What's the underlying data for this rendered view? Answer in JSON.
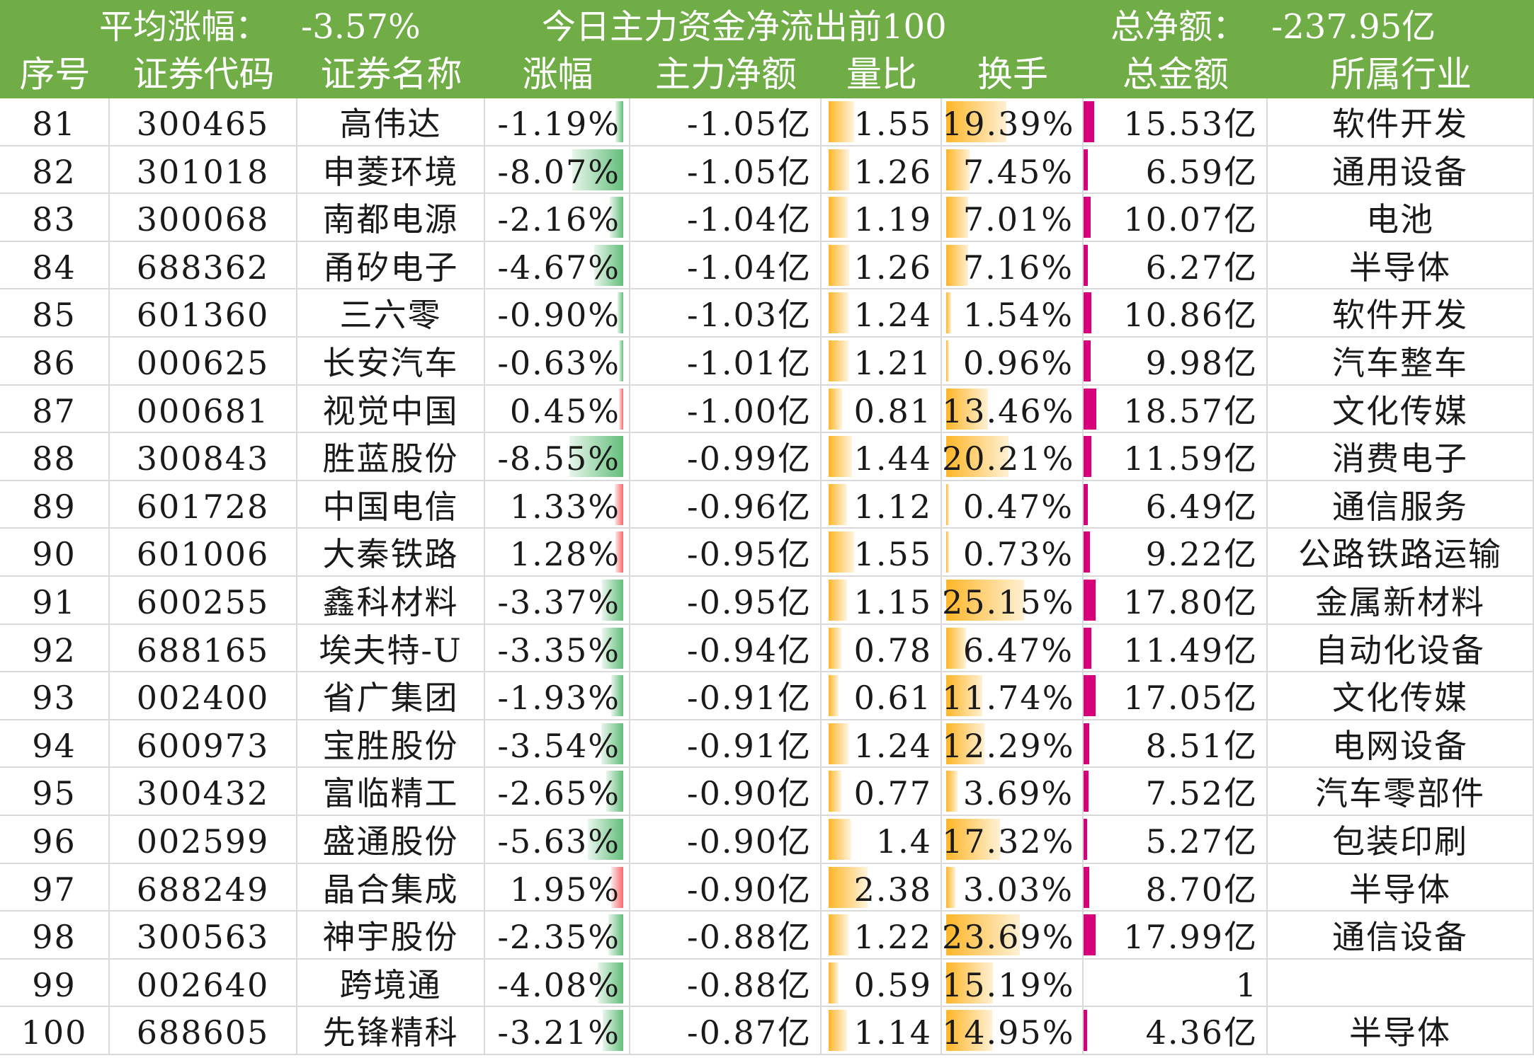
{
  "header": {
    "avg_label": "平均涨幅：",
    "avg_value": "-3.57%",
    "title": "今日主力资金净流出前100",
    "total_label": "总净额：",
    "total_value": "-237.95亿",
    "columns": [
      "序号",
      "证券代码",
      "证券名称",
      "涨幅",
      "主力净额",
      "量比",
      "换手",
      "总金额",
      "所属行业"
    ]
  },
  "colors": {
    "header_bg": "#70ad47",
    "bar_down": "#63be7b",
    "bar_up": "#f8696b",
    "bar_ratio": "#ffb628",
    "bar_amount": "#d6007b"
  },
  "rows": [
    {
      "no": "81",
      "code": "300465",
      "name": "高伟达",
      "chg": "-1.19%",
      "net": "-1.05亿",
      "ratio": "1.55",
      "turnover": "19.39%",
      "amount": "15.53亿",
      "industry": "软件开发"
    },
    {
      "no": "82",
      "code": "301018",
      "name": "申菱环境",
      "chg": "-8.07%",
      "net": "-1.05亿",
      "ratio": "1.26",
      "turnover": "7.45%",
      "amount": "6.59亿",
      "industry": "通用设备"
    },
    {
      "no": "83",
      "code": "300068",
      "name": "南都电源",
      "chg": "-2.16%",
      "net": "-1.04亿",
      "ratio": "1.19",
      "turnover": "7.01%",
      "amount": "10.07亿",
      "industry": "电池"
    },
    {
      "no": "84",
      "code": "688362",
      "name": "甬矽电子",
      "chg": "-4.67%",
      "net": "-1.04亿",
      "ratio": "1.26",
      "turnover": "7.16%",
      "amount": "6.27亿",
      "industry": "半导体"
    },
    {
      "no": "85",
      "code": "601360",
      "name": "三六零",
      "chg": "-0.90%",
      "net": "-1.03亿",
      "ratio": "1.24",
      "turnover": "1.54%",
      "amount": "10.86亿",
      "industry": "软件开发"
    },
    {
      "no": "86",
      "code": "000625",
      "name": "长安汽车",
      "chg": "-0.63%",
      "net": "-1.01亿",
      "ratio": "1.21",
      "turnover": "0.96%",
      "amount": "9.98亿",
      "industry": "汽车整车"
    },
    {
      "no": "87",
      "code": "000681",
      "name": "视觉中国",
      "chg": "0.45%",
      "net": "-1.00亿",
      "ratio": "0.81",
      "turnover": "13.46%",
      "amount": "18.57亿",
      "industry": "文化传媒"
    },
    {
      "no": "88",
      "code": "300843",
      "name": "胜蓝股份",
      "chg": "-8.55%",
      "net": "-0.99亿",
      "ratio": "1.44",
      "turnover": "20.21%",
      "amount": "11.59亿",
      "industry": "消费电子"
    },
    {
      "no": "89",
      "code": "601728",
      "name": "中国电信",
      "chg": "1.33%",
      "net": "-0.96亿",
      "ratio": "1.12",
      "turnover": "0.47%",
      "amount": "6.49亿",
      "industry": "通信服务"
    },
    {
      "no": "90",
      "code": "601006",
      "name": "大秦铁路",
      "chg": "1.28%",
      "net": "-0.95亿",
      "ratio": "1.55",
      "turnover": "0.73%",
      "amount": "9.22亿",
      "industry": "公路铁路运输"
    },
    {
      "no": "91",
      "code": "600255",
      "name": "鑫科材料",
      "chg": "-3.37%",
      "net": "-0.95亿",
      "ratio": "1.15",
      "turnover": "25.15%",
      "amount": "17.80亿",
      "industry": "金属新材料"
    },
    {
      "no": "92",
      "code": "688165",
      "name": "埃夫特-U",
      "chg": "-3.35%",
      "net": "-0.94亿",
      "ratio": "0.78",
      "turnover": "6.47%",
      "amount": "11.49亿",
      "industry": "自动化设备"
    },
    {
      "no": "93",
      "code": "002400",
      "name": "省广集团",
      "chg": "-1.93%",
      "net": "-0.91亿",
      "ratio": "0.61",
      "turnover": "11.74%",
      "amount": "17.05亿",
      "industry": "文化传媒"
    },
    {
      "no": "94",
      "code": "600973",
      "name": "宝胜股份",
      "chg": "-3.54%",
      "net": "-0.91亿",
      "ratio": "1.24",
      "turnover": "12.29%",
      "amount": "8.51亿",
      "industry": "电网设备"
    },
    {
      "no": "95",
      "code": "300432",
      "name": "富临精工",
      "chg": "-2.65%",
      "net": "-0.90亿",
      "ratio": "0.77",
      "turnover": "3.69%",
      "amount": "7.52亿",
      "industry": "汽车零部件"
    },
    {
      "no": "96",
      "code": "002599",
      "name": "盛通股份",
      "chg": "-5.63%",
      "net": "-0.90亿",
      "ratio": "1.4",
      "turnover": "17.32%",
      "amount": "5.27亿",
      "industry": "包装印刷"
    },
    {
      "no": "97",
      "code": "688249",
      "name": "晶合集成",
      "chg": "1.95%",
      "net": "-0.90亿",
      "ratio": "2.38",
      "turnover": "3.03%",
      "amount": "8.70亿",
      "industry": "半导体"
    },
    {
      "no": "98",
      "code": "300563",
      "name": "神宇股份",
      "chg": "-2.35%",
      "net": "-0.88亿",
      "ratio": "1.22",
      "turnover": "23.69%",
      "amount": "17.99亿",
      "industry": "通信设备"
    },
    {
      "no": "99",
      "code": "002640",
      "name": "跨境通",
      "chg": "-4.08%",
      "net": "-0.88亿",
      "ratio": "0.59",
      "turnover": "15.19%",
      "amount": "1",
      "industry": ""
    },
    {
      "no": "100",
      "code": "688605",
      "name": "先锋精科",
      "chg": "-3.21%",
      "net": "-0.87亿",
      "ratio": "1.14",
      "turnover": "14.95%",
      "amount": "4.36亿",
      "industry": "半导体"
    }
  ]
}
